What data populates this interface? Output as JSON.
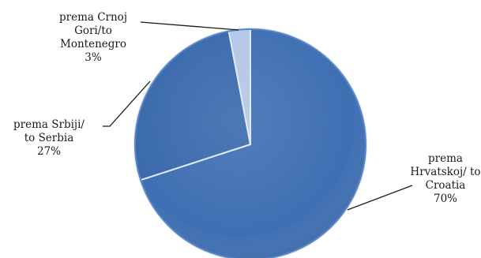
{
  "chart_data": {
    "type": "pie",
    "title": "",
    "categories": [
      "prema Hrvatskoj/ to Croatia",
      "prema Srbiji/ to Serbia",
      "prema Crnoj Gori/to Montenegro"
    ],
    "values": [
      70,
      27,
      3
    ],
    "value_labels": [
      "70%",
      "27%",
      "3%"
    ],
    "colors": [
      "#3f6fb3",
      "#3a6aad",
      "#b4c7e6"
    ],
    "label_lines": [
      [
        "prema",
        "Hrvatskoj/ to",
        "Croatia",
        "70%"
      ],
      [
        "prema Srbiji/",
        "to Serbia",
        "27%"
      ],
      [
        "prema Crnoj",
        "Gori/to",
        "Montenegro",
        "3%"
      ]
    ],
    "legend": "none",
    "style": "3d-beveled"
  }
}
